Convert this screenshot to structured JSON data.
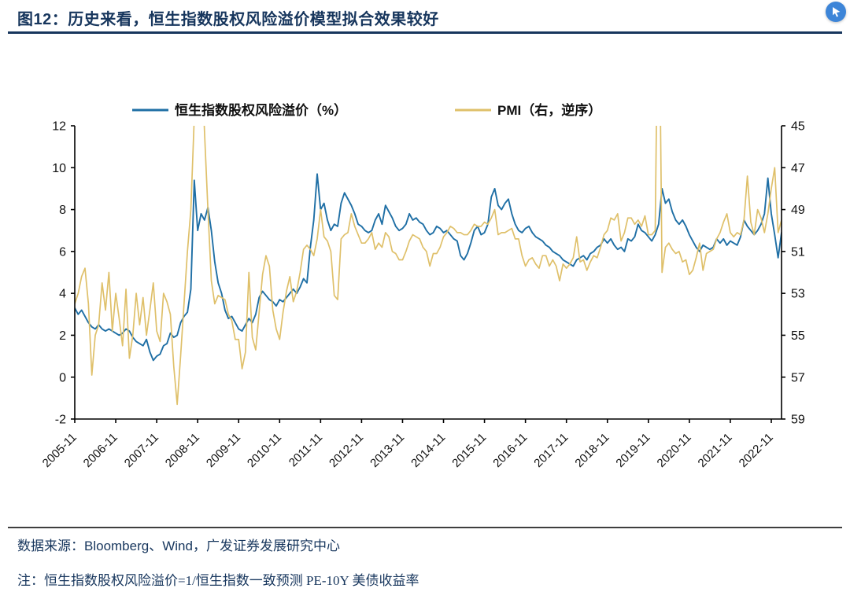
{
  "page": {
    "title": "图12：历史来看，恒生指数股权风险溢价模型拟合效果较好",
    "source": "数据来源：Bloomberg、Wind，广发证券发展研究中心",
    "note": "注：恒生指数股权风险溢价=1/恒生指数一致预测 PE-10Y 美债收益率",
    "accent_color": "#17365d"
  },
  "chart_data": {
    "type": "line",
    "title": "",
    "legend_position": "top",
    "grid": false,
    "x_start": "2005-11",
    "x_freq": "monthly",
    "x_tick_labels": [
      "2005-11",
      "2006-11",
      "2007-11",
      "2008-11",
      "2009-11",
      "2010-11",
      "2011-11",
      "2012-11",
      "2013-11",
      "2014-11",
      "2015-11",
      "2016-11",
      "2017-11",
      "2018-11",
      "2019-11",
      "2020-11",
      "2021-11",
      "2022-11"
    ],
    "left_axis": {
      "min": -2,
      "max": 12,
      "ticks": [
        12,
        10,
        8,
        6,
        4,
        2,
        0,
        -2
      ]
    },
    "right_axis": {
      "min": 45,
      "max": 59,
      "inverted": true,
      "ticks": [
        45,
        47,
        49,
        51,
        53,
        55,
        57,
        59
      ]
    },
    "series": [
      {
        "name": "恒生指数股权风险溢价（%）",
        "axis": "left",
        "color": "#1f6fa5",
        "values": [
          3.3,
          3.0,
          3.2,
          2.9,
          2.6,
          2.4,
          2.3,
          2.5,
          2.3,
          2.2,
          2.3,
          2.2,
          2.1,
          2.0,
          2.1,
          2.3,
          2.2,
          1.9,
          1.7,
          1.6,
          1.5,
          1.8,
          1.2,
          0.8,
          1.0,
          1.1,
          1.5,
          1.6,
          2.1,
          1.9,
          2.0,
          2.6,
          2.9,
          3.1,
          4.2,
          9.4,
          7.0,
          7.8,
          7.5,
          8.1,
          7.0,
          5.5,
          4.5,
          4.0,
          3.2,
          2.8,
          2.9,
          2.6,
          2.3,
          2.2,
          2.5,
          2.8,
          2.6,
          3.0,
          3.8,
          4.1,
          3.9,
          3.7,
          3.6,
          3.4,
          3.7,
          3.6,
          3.8,
          4.0,
          4.2,
          4.0,
          4.3,
          4.7,
          4.5,
          6.2,
          7.5,
          9.7,
          8.0,
          8.3,
          7.5,
          7.0,
          7.3,
          7.2,
          8.3,
          8.8,
          8.5,
          8.2,
          7.8,
          7.3,
          7.2,
          7.0,
          6.9,
          7.0,
          7.5,
          7.8,
          7.3,
          8.2,
          7.9,
          7.6,
          7.2,
          7.0,
          7.1,
          7.3,
          7.8,
          7.5,
          7.6,
          7.4,
          7.3,
          7.0,
          6.8,
          6.9,
          7.2,
          7.1,
          6.9,
          7.0,
          6.8,
          6.6,
          6.5,
          5.8,
          5.6,
          5.9,
          6.4,
          7.0,
          7.2,
          6.8,
          6.9,
          7.3,
          8.6,
          9.0,
          8.2,
          8.0,
          8.3,
          8.5,
          7.8,
          7.3,
          7.0,
          6.9,
          7.1,
          7.2,
          6.9,
          6.7,
          6.6,
          6.5,
          6.3,
          6.2,
          6.0,
          5.9,
          5.8,
          5.6,
          5.5,
          5.4,
          5.3,
          5.6,
          5.7,
          5.8,
          5.6,
          5.9,
          6.0,
          6.2,
          6.3,
          6.6,
          6.4,
          6.6,
          6.3,
          6.1,
          6.2,
          6.0,
          6.6,
          6.5,
          6.7,
          7.3,
          7.0,
          6.9,
          6.7,
          6.5,
          6.8,
          7.3,
          9.0,
          8.3,
          8.5,
          7.9,
          7.5,
          7.3,
          7.5,
          7.2,
          6.8,
          6.5,
          6.2,
          6.0,
          6.3,
          6.2,
          6.1,
          6.2,
          6.6,
          6.4,
          6.6,
          6.3,
          6.5,
          6.4,
          6.3,
          6.7,
          7.5,
          7.2,
          7.0,
          6.8,
          7.0,
          7.3,
          7.8,
          9.5,
          7.8,
          6.8,
          5.7,
          6.9
        ]
      },
      {
        "name": "PMI（右，逆序）",
        "axis": "right",
        "color": "#dfc06a",
        "values": [
          53.5,
          53.0,
          52.2,
          51.8,
          53.5,
          56.9,
          55.0,
          54.5,
          52.5,
          53.8,
          52.0,
          54.8,
          53.0,
          54.2,
          55.5,
          52.8,
          56.1,
          55.0,
          53.0,
          54.5,
          53.2,
          55.0,
          53.8,
          52.5,
          54.8,
          55.3,
          53.0,
          53.4,
          54.0,
          56.5,
          58.3,
          56.0,
          53.5,
          51.0,
          49.0,
          44.6,
          38.8,
          41.2,
          45.3,
          49.0,
          52.4,
          53.5,
          53.1,
          53.2,
          53.3,
          54.0,
          54.3,
          55.2,
          55.2,
          56.6,
          55.8,
          52.0,
          55.1,
          55.7,
          53.9,
          52.1,
          51.2,
          51.7,
          53.8,
          54.7,
          55.2,
          53.9,
          52.9,
          52.2,
          53.4,
          52.9,
          52.0,
          50.9,
          50.7,
          50.9,
          51.2,
          50.4,
          49.0,
          50.3,
          50.5,
          51.0,
          53.1,
          53.3,
          50.4,
          50.2,
          50.1,
          49.2,
          49.8,
          50.2,
          50.6,
          50.6,
          50.4,
          50.1,
          50.9,
          50.6,
          50.8,
          50.1,
          50.3,
          51.0,
          51.1,
          51.4,
          51.4,
          51.0,
          50.5,
          50.2,
          50.3,
          50.4,
          50.8,
          51.0,
          51.7,
          51.1,
          51.1,
          50.8,
          50.3,
          50.1,
          49.8,
          49.9,
          50.1,
          50.1,
          50.2,
          50.2,
          50.0,
          49.7,
          49.8,
          49.8,
          49.6,
          49.7,
          49.4,
          49.0,
          50.2,
          50.1,
          50.1,
          50.0,
          49.9,
          50.4,
          50.4,
          51.2,
          51.7,
          51.4,
          51.3,
          51.6,
          51.8,
          51.2,
          51.2,
          51.7,
          51.4,
          51.7,
          52.4,
          51.6,
          51.8,
          51.6,
          51.3,
          50.3,
          51.5,
          51.4,
          51.9,
          51.5,
          51.2,
          51.3,
          50.8,
          50.2,
          50.0,
          49.4,
          49.5,
          49.2,
          50.5,
          50.1,
          49.4,
          49.4,
          49.7,
          49.5,
          49.8,
          49.3,
          50.2,
          50.2,
          50.0,
          35.7,
          52.0,
          50.8,
          50.6,
          50.9,
          51.1,
          51.0,
          51.5,
          51.4,
          52.1,
          51.9,
          51.3,
          50.6,
          51.9,
          51.1,
          51.0,
          50.9,
          50.4,
          50.1,
          49.6,
          49.2,
          50.1,
          50.3,
          50.1,
          50.2,
          49.5,
          47.4,
          49.6,
          50.2,
          49.0,
          49.4,
          50.1,
          49.2,
          48.0,
          47.0,
          50.1,
          49.5
        ]
      }
    ]
  }
}
